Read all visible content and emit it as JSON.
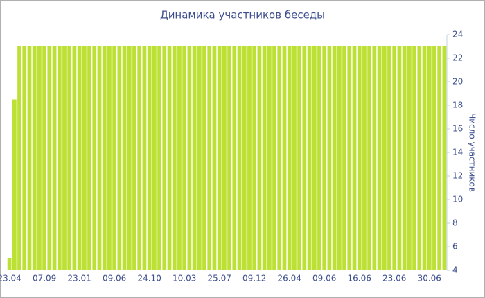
{
  "chart_data": {
    "type": "bar",
    "title": "Динамика участников беседы",
    "y_label": "Число участников",
    "categories": [
      "23.04",
      null,
      null,
      null,
      null,
      null,
      null,
      "07.09",
      null,
      null,
      null,
      null,
      null,
      null,
      "23.01",
      null,
      null,
      null,
      null,
      null,
      null,
      "09.06",
      null,
      null,
      null,
      null,
      null,
      null,
      "24.10",
      null,
      null,
      null,
      null,
      null,
      null,
      "10.03",
      null,
      null,
      null,
      null,
      null,
      null,
      "25.07",
      null,
      null,
      null,
      null,
      null,
      null,
      "09.12",
      null,
      null,
      null,
      null,
      null,
      null,
      "26.04",
      null,
      null,
      null,
      null,
      null,
      null,
      "09.06",
      null,
      null,
      null,
      null,
      null,
      null,
      "16.06",
      null,
      null,
      null,
      null,
      null,
      null,
      "23.06",
      null,
      null,
      null,
      null,
      null,
      null,
      "30.06",
      null,
      null,
      null
    ],
    "values": [
      5,
      18.5,
      23,
      23,
      23,
      23,
      23,
      23,
      23,
      23,
      23,
      23,
      23,
      23,
      23,
      23,
      23,
      23,
      23,
      23,
      23,
      23,
      23,
      23,
      23,
      23,
      23,
      23,
      23,
      23,
      23,
      23,
      23,
      23,
      23,
      23,
      23,
      23,
      23,
      23,
      23,
      23,
      23,
      23,
      23,
      23,
      23,
      23,
      23,
      23,
      23,
      23,
      23,
      23,
      23,
      23,
      23,
      23,
      23,
      23,
      23,
      23,
      23,
      23,
      23,
      23,
      23,
      23,
      23,
      23,
      23,
      23,
      23,
      23,
      23,
      23,
      23,
      23,
      23,
      23,
      23,
      23,
      23,
      23,
      23,
      23,
      23,
      23
    ],
    "color": "#bde034",
    "ylim": [
      4,
      24
    ],
    "yticks": [
      4,
      6,
      8,
      10,
      12,
      14,
      16,
      18,
      20,
      22,
      24
    ],
    "y_axis_side": "right",
    "grid": false
  }
}
